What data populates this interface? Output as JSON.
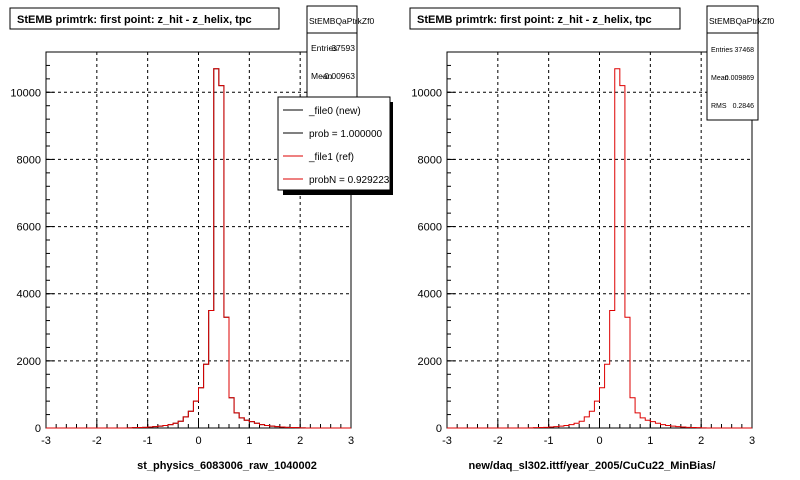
{
  "canvas_background": "#ffffff",
  "colors": {
    "new": "#000000",
    "ref": "#dd0000",
    "grid": "#000000"
  },
  "panels": [
    {
      "title": "StEMB primtrk: first point: z_hit - z_helix, tpc",
      "stats": {
        "name": "StEMBQaPtrkZf0",
        "rows": [
          {
            "label": "Entries",
            "value": "37593"
          },
          {
            "label": "Mean",
            "value": "-0.00963"
          }
        ]
      },
      "legend": {
        "entries": [
          {
            "label": "_file0 (new)",
            "color": "#000000"
          },
          {
            "label": "prob = 1.000000",
            "color": "#000000"
          },
          {
            "label": "_file1 (ref)",
            "color": "#dd0000"
          },
          {
            "label": "probN = 0.929223",
            "color": "#dd0000"
          }
        ]
      },
      "xlabel": "st_physics_6083006_raw_1040002"
    },
    {
      "title": "StEMB primtrk: first point: z_hit - z_helix, tpc",
      "stats": {
        "name": "StEMBQaPtrkZf0",
        "rows": [
          {
            "label": "Entries",
            "value": "37468"
          },
          {
            "label": "Mean",
            "value": "-0.009869"
          },
          {
            "label": "RMS",
            "value": "0.2846"
          }
        ]
      },
      "legend": null,
      "xlabel": "new/daq_sl302.ittf/year_2005/CuCu22_MinBias/"
    }
  ],
  "chart_data": [
    {
      "type": "histogram",
      "title": "StEMB primtrk: first point: z_hit - z_helix, tpc",
      "xlabel": "st_physics_6083006_raw_1040002",
      "xlim": [
        -3,
        3
      ],
      "ylim": [
        0,
        11200
      ],
      "x_ticks": [
        -3,
        -2,
        -1,
        0,
        1,
        2,
        3
      ],
      "y_ticks": [
        0,
        2000,
        4000,
        6000,
        8000,
        10000
      ],
      "grid": true,
      "legend_position": "top-right",
      "bin_width": 0.1,
      "bins_x_start": -3.0,
      "series": [
        {
          "name": "_file0 (new)",
          "color": "#000000",
          "values": [
            0,
            0,
            0,
            0,
            0,
            0,
            0,
            0,
            0,
            0,
            0,
            0,
            0,
            0,
            0,
            0,
            5,
            10,
            15,
            20,
            30,
            40,
            55,
            75,
            100,
            140,
            200,
            330,
            500,
            800,
            1200,
            1900,
            3500,
            10700,
            10200,
            3300,
            900,
            450,
            300,
            230,
            190,
            140,
            100,
            75,
            55,
            40,
            30,
            20,
            15,
            10,
            5,
            0,
            0,
            0,
            0,
            0,
            0,
            0,
            0,
            0
          ]
        },
        {
          "name": "_file1 (ref)",
          "color": "#dd0000",
          "values": [
            0,
            0,
            0,
            0,
            0,
            0,
            0,
            0,
            0,
            0,
            0,
            0,
            0,
            0,
            0,
            0,
            5,
            10,
            15,
            20,
            30,
            40,
            55,
            75,
            100,
            140,
            200,
            330,
            500,
            800,
            1200,
            1900,
            3500,
            10700,
            10200,
            3300,
            900,
            450,
            300,
            230,
            190,
            140,
            100,
            75,
            55,
            40,
            30,
            20,
            15,
            10,
            5,
            0,
            0,
            0,
            0,
            0,
            0,
            0,
            0,
            0
          ]
        }
      ]
    },
    {
      "type": "histogram",
      "title": "StEMB primtrk: first point: z_hit - z_helix, tpc",
      "xlabel": "new/daq_sl302.ittf/year_2005/CuCu22_MinBias/",
      "xlim": [
        -3,
        3
      ],
      "ylim": [
        0,
        11200
      ],
      "x_ticks": [
        -3,
        -2,
        -1,
        0,
        1,
        2,
        3
      ],
      "y_ticks": [
        0,
        2000,
        4000,
        6000,
        8000,
        10000
      ],
      "grid": true,
      "bin_width": 0.1,
      "bins_x_start": -3.0,
      "series": [
        {
          "name": "",
          "color": "#dd0000",
          "values": [
            0,
            0,
            0,
            0,
            0,
            0,
            0,
            0,
            0,
            0,
            0,
            0,
            0,
            0,
            0,
            0,
            5,
            10,
            15,
            20,
            30,
            40,
            55,
            75,
            100,
            140,
            200,
            330,
            500,
            800,
            1200,
            1900,
            3500,
            10700,
            10200,
            3300,
            900,
            450,
            300,
            230,
            190,
            140,
            100,
            75,
            55,
            40,
            30,
            20,
            15,
            10,
            5,
            0,
            0,
            0,
            0,
            0,
            0,
            0,
            0,
            0
          ]
        }
      ]
    }
  ]
}
